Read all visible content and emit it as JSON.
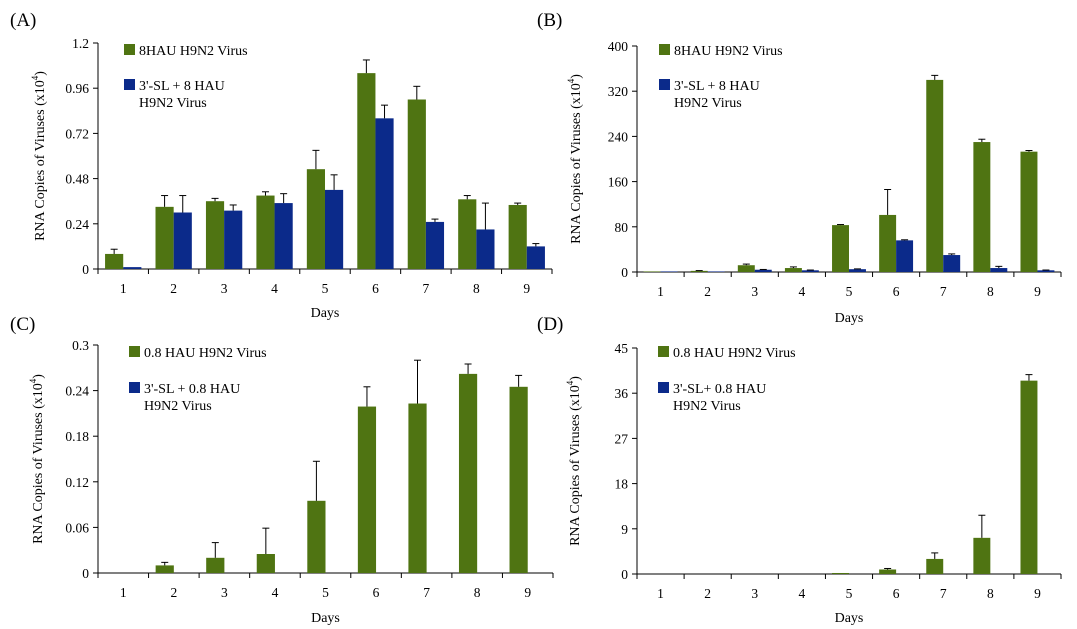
{
  "colors": {
    "green": "#4f7412",
    "blue": "#0b2a8a"
  },
  "chart_data": [
    {
      "type": "bar",
      "panel": "(A)",
      "xlabel": "Days",
      "ylabel": "RNA Copies of Viruses (x10",
      "ylabel_exp": "4",
      "ylabel_close": ")",
      "ylim": [
        0,
        1.2
      ],
      "yticks": [
        "0",
        "0.24",
        "0.48",
        "0.72",
        "0.96",
        "1.2"
      ],
      "categories": [
        "1",
        "2",
        "3",
        "4",
        "5",
        "6",
        "7",
        "8",
        "9"
      ],
      "series": [
        {
          "name": "8HAU H9N2 Virus",
          "color": "green",
          "values": [
            0.08,
            0.33,
            0.36,
            0.39,
            0.53,
            1.04,
            0.9,
            0.37,
            0.34
          ],
          "errors": [
            0.025,
            0.06,
            0.015,
            0.02,
            0.1,
            0.07,
            0.07,
            0.02,
            0.01
          ]
        },
        {
          "name": "3'-SL + 8 HAU",
          "name2": "H9N2 Virus",
          "color": "blue",
          "values": [
            0.01,
            0.3,
            0.31,
            0.35,
            0.42,
            0.8,
            0.25,
            0.21,
            0.12
          ],
          "errors": [
            0.0,
            0.09,
            0.03,
            0.05,
            0.08,
            0.07,
            0.015,
            0.14,
            0.015
          ]
        }
      ]
    },
    {
      "type": "bar",
      "panel": "(B)",
      "xlabel": "Days",
      "ylabel": "RNA Copies of Viruses (x10",
      "ylabel_exp": "4",
      "ylabel_close": ")",
      "ylim": [
        0,
        400
      ],
      "yticks": [
        "0",
        "80",
        "160",
        "240",
        "320",
        "400"
      ],
      "categories": [
        "1",
        "2",
        "3",
        "4",
        "5",
        "6",
        "7",
        "8",
        "9"
      ],
      "series": [
        {
          "name": "8HAU H9N2 Virus",
          "color": "green",
          "values": [
            1,
            2,
            12,
            7,
            83,
            101,
            340,
            230,
            213
          ],
          "errors": [
            0,
            0.5,
            2,
            2,
            1,
            45,
            8,
            5,
            2
          ]
        },
        {
          "name": "3'-SL + 8 HAU",
          "name2": "H9N2 Virus",
          "color": "blue",
          "values": [
            1,
            1,
            4,
            3,
            5,
            56,
            30,
            7,
            3
          ],
          "errors": [
            0,
            0,
            0.5,
            0.5,
            0.5,
            1,
            2,
            3,
            0.5
          ]
        }
      ]
    },
    {
      "type": "bar",
      "panel": "(C)",
      "xlabel": "Days",
      "ylabel": "RNA Copies of Viruses (x10",
      "ylabel_exp": "4",
      "ylabel_close": ")",
      "ylim": [
        0,
        0.3
      ],
      "yticks": [
        "0",
        "0.06",
        "0.12",
        "0.18",
        "0.24",
        "0.3"
      ],
      "categories": [
        "1",
        "2",
        "3",
        "4",
        "5",
        "6",
        "7",
        "8",
        "9"
      ],
      "series": [
        {
          "name": "0.8 HAU H9N2 Virus",
          "color": "green",
          "values": [
            0,
            0.01,
            0.02,
            0.025,
            0.095,
            0.219,
            0.223,
            0.262,
            0.245
          ],
          "errors": [
            0,
            0.004,
            0.02,
            0.034,
            0.052,
            0.026,
            0.057,
            0.013,
            0.015
          ]
        },
        {
          "name": "3'-SL +  0.8 HAU",
          "name2": "H9N2 Virus",
          "color": "blue",
          "values": [
            0,
            0,
            0,
            0,
            0,
            0,
            0,
            0,
            0
          ],
          "errors": [
            0,
            0,
            0,
            0,
            0,
            0,
            0,
            0,
            0
          ]
        }
      ]
    },
    {
      "type": "bar",
      "panel": "(D)",
      "xlabel": "Days",
      "ylabel": "RNA Copies of Viruses (x10",
      "ylabel_exp": "4",
      "ylabel_close": ")",
      "ylim": [
        0,
        45
      ],
      "yticks": [
        "0",
        "9",
        "18",
        "27",
        "36",
        "45"
      ],
      "categories": [
        "1",
        "2",
        "3",
        "4",
        "5",
        "6",
        "7",
        "8",
        "9"
      ],
      "series": [
        {
          "name": "0.8 HAU H9N2 Virus",
          "color": "green",
          "values": [
            0,
            0,
            0,
            0,
            0.2,
            0.9,
            3.0,
            7.2,
            38.5
          ],
          "errors": [
            0,
            0,
            0,
            0,
            0,
            0.2,
            1.2,
            4.5,
            1.2
          ]
        },
        {
          "name": "3'-SL+ 0.8 HAU",
          "name2": "H9N2 Virus",
          "color": "blue",
          "values": [
            0,
            0,
            0,
            0,
            0,
            0,
            0,
            0,
            0
          ],
          "errors": [
            0,
            0,
            0,
            0,
            0,
            0,
            0,
            0,
            0
          ]
        }
      ]
    }
  ]
}
